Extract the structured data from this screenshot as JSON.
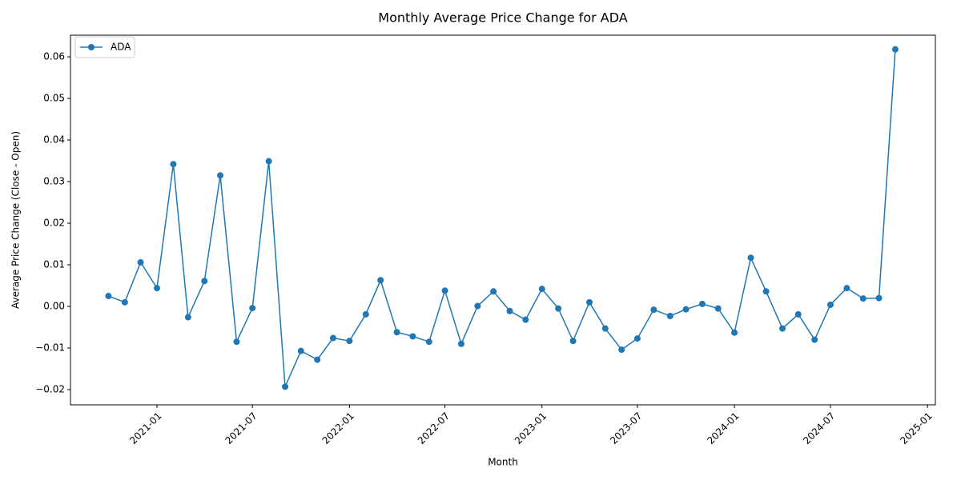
{
  "chart_data": {
    "type": "line",
    "title": "Monthly Average Price Change for ADA",
    "x_label": "Month",
    "y_label": "Average Price Change (Close - Open)",
    "x": [
      "2020-10",
      "2020-11",
      "2020-12",
      "2021-01",
      "2021-02",
      "2021-03",
      "2021-04",
      "2021-05",
      "2021-06",
      "2021-07",
      "2021-08",
      "2021-09",
      "2021-10",
      "2021-11",
      "2021-12",
      "2022-01",
      "2022-02",
      "2022-03",
      "2022-04",
      "2022-05",
      "2022-06",
      "2022-07",
      "2022-08",
      "2022-09",
      "2022-10",
      "2022-11",
      "2022-12",
      "2023-01",
      "2023-02",
      "2023-03",
      "2023-04",
      "2023-05",
      "2023-06",
      "2023-07",
      "2023-08",
      "2023-09",
      "2023-10",
      "2023-11",
      "2023-12",
      "2024-01",
      "2024-02",
      "2024-03",
      "2024-04",
      "2024-05",
      "2024-06",
      "2024-07",
      "2024-08",
      "2024-09",
      "2024-10",
      "2024-11"
    ],
    "series": [
      {
        "name": "ADA",
        "color": "#1f77b4",
        "values": [
          0.0025,
          0.001,
          0.0106,
          0.0044,
          0.0342,
          -0.0026,
          0.0061,
          0.0315,
          -0.0085,
          -0.0004,
          0.0349,
          -0.0193,
          -0.0107,
          -0.0128,
          -0.0076,
          -0.0083,
          -0.0019,
          0.0063,
          -0.0062,
          -0.0072,
          -0.0085,
          0.0038,
          -0.009,
          0.0001,
          0.0036,
          -0.0011,
          -0.0032,
          0.0042,
          -0.0005,
          -0.0083,
          0.001,
          -0.0053,
          -0.0104,
          -0.0077,
          -0.0008,
          -0.0023,
          -0.0007,
          0.0006,
          -0.0005,
          -0.0063,
          0.0117,
          0.0036,
          -0.0053,
          -0.0019,
          -0.008,
          0.0004,
          0.0044,
          0.0019,
          0.002,
          0.0618
        ]
      }
    ],
    "xlim": [
      "2020-07-21",
      "2025-01-16"
    ],
    "xticks": [
      "2021-01",
      "2021-07",
      "2022-01",
      "2022-07",
      "2023-01",
      "2023-07",
      "2024-01",
      "2024-07",
      "2025-01"
    ],
    "ylim": [
      -0.02365,
      0.0652
    ],
    "yticks": [
      {
        "value": -0.02,
        "label": "−0.02"
      },
      {
        "value": -0.01,
        "label": "−0.01"
      },
      {
        "value": 0,
        "label": "0.00"
      },
      {
        "value": 0.01,
        "label": "0.01"
      },
      {
        "value": 0.02,
        "label": "0.02"
      },
      {
        "value": 0.03,
        "label": "0.03"
      },
      {
        "value": 0.04,
        "label": "0.04"
      },
      {
        "value": 0.05,
        "label": "0.05"
      },
      {
        "value": 0.06,
        "label": "0.06"
      }
    ],
    "legend": "upper-left",
    "grid": false
  }
}
